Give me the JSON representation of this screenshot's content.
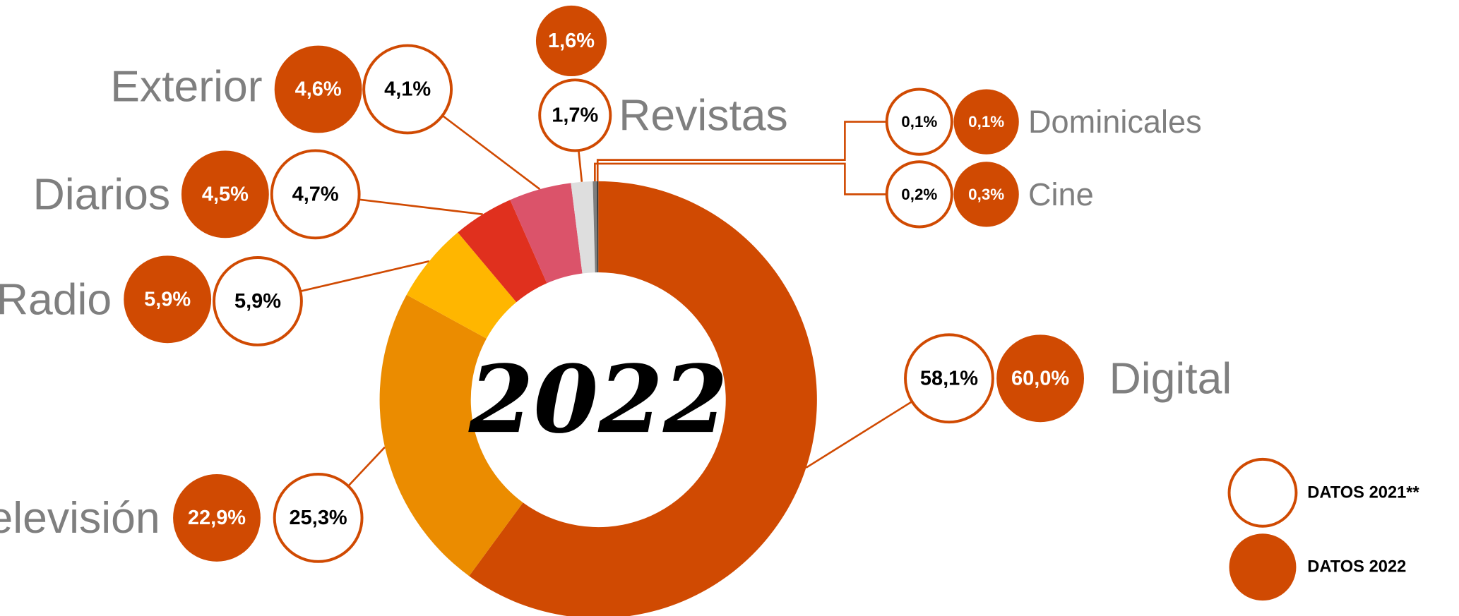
{
  "chart_data": {
    "type": "donut",
    "center_label": "2022",
    "categories": [
      "Digital",
      "Televisión",
      "Radio",
      "Diarios",
      "Exterior",
      "Revistas",
      "Cine",
      "Dominicales"
    ],
    "colors": [
      "#d04a02",
      "#eb8c00",
      "#ffb600",
      "#e0301e",
      "#db536a",
      "#dedede",
      "#7d7d7d",
      "#2d2d2d"
    ],
    "series": [
      {
        "name": "DATOS 2021**",
        "color": "#ffffff",
        "values": [
          58.1,
          25.3,
          5.9,
          4.7,
          4.1,
          1.7,
          0.2,
          0.1
        ],
        "value_labels": [
          "58,1%",
          "25,3%",
          "5,9%",
          "4,7%",
          "4,1%",
          "1,7%",
          "0,2%",
          "0,1%"
        ]
      },
      {
        "name": "DATOS 2022",
        "color": "#d04a02",
        "values": [
          60.0,
          22.9,
          5.9,
          4.5,
          4.6,
          1.6,
          0.3,
          0.1
        ],
        "value_labels": [
          "60,0%",
          "22,9%",
          "5,9%",
          "4,5%",
          "4,6%",
          "1,6%",
          "0,3%",
          "0,1%"
        ]
      }
    ],
    "legend": "bottom-right"
  }
}
